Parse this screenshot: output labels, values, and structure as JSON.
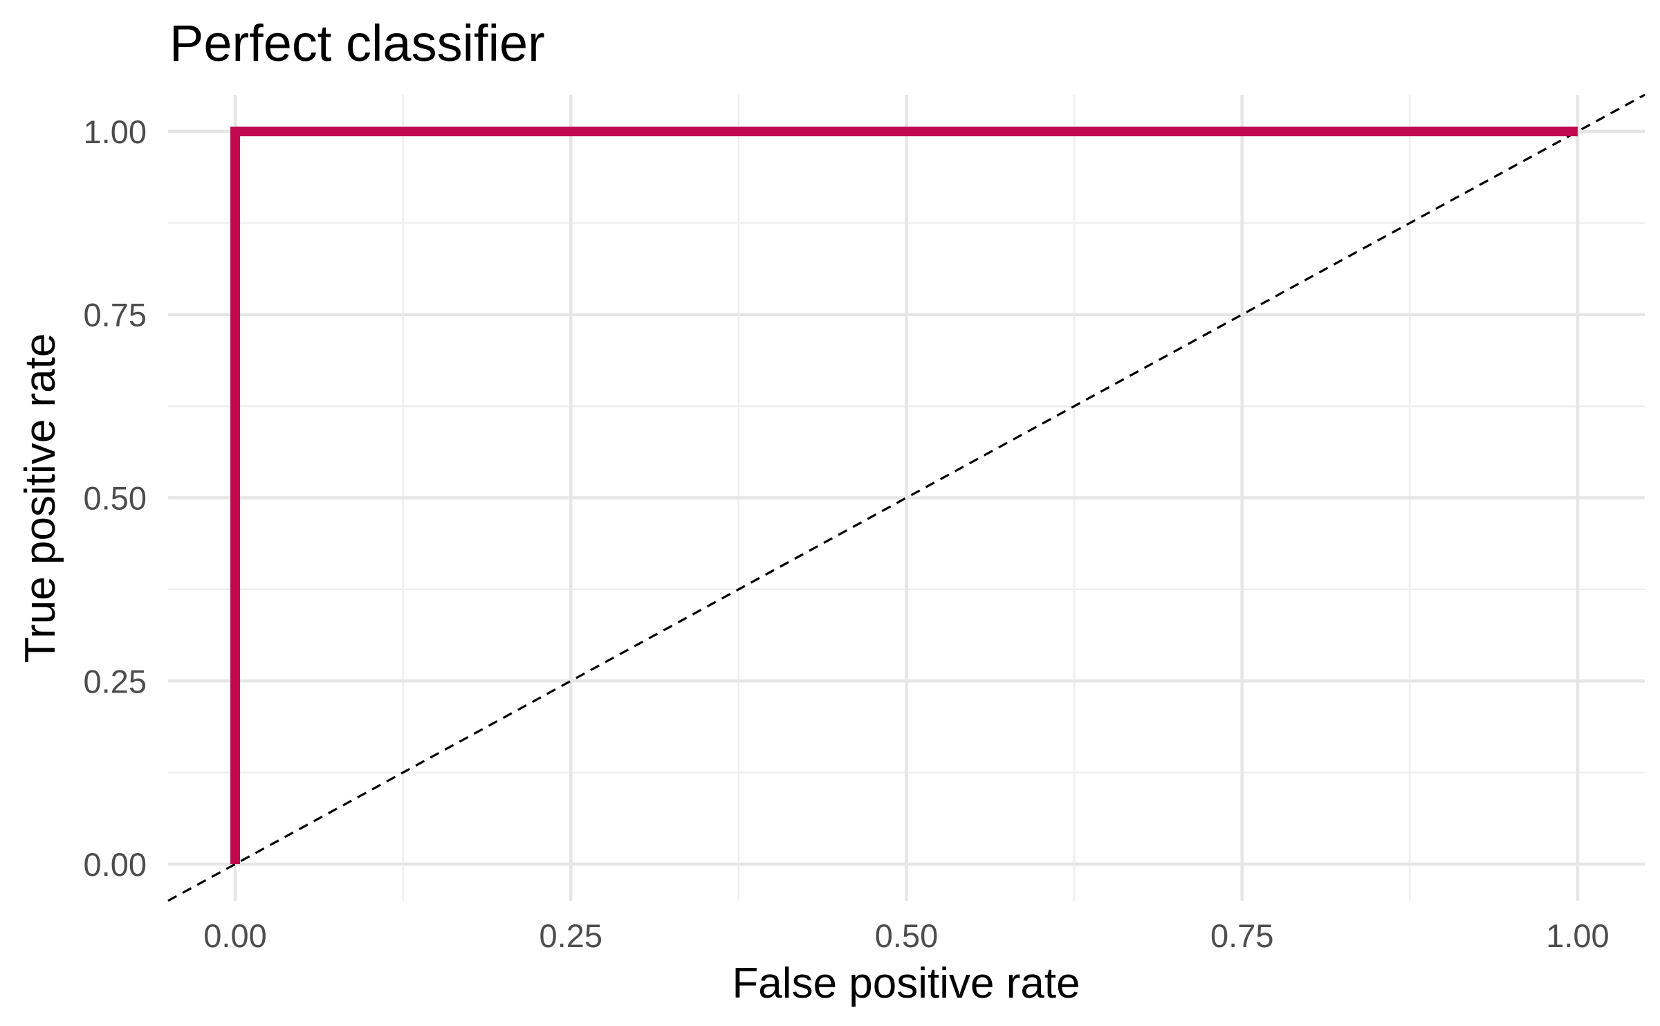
{
  "chart_data": {
    "type": "line",
    "title": "Perfect classifier",
    "xlabel": "False positive rate",
    "ylabel": "True positive rate",
    "xlim": [
      -0.05,
      1.05
    ],
    "ylim": [
      -0.05,
      1.05
    ],
    "x_ticks": [
      0,
      0.25,
      0.5,
      0.75,
      1
    ],
    "x_tick_labels": [
      "0.00",
      "0.25",
      "0.50",
      "0.75",
      "1.00"
    ],
    "y_ticks": [
      0,
      0.25,
      0.5,
      0.75,
      1
    ],
    "y_tick_labels": [
      "0.00",
      "0.25",
      "0.50",
      "0.75",
      "1.00"
    ],
    "grid": true,
    "series": [
      {
        "x": [
          0,
          0,
          1
        ],
        "y": [
          0,
          1,
          1
        ],
        "color": "#C0094F",
        "style": "solid"
      }
    ],
    "reference_line": {
      "x": [
        -0.05,
        1.05
      ],
      "y": [
        -0.05,
        1.05
      ],
      "color": "#000000",
      "style": "dashed"
    }
  }
}
